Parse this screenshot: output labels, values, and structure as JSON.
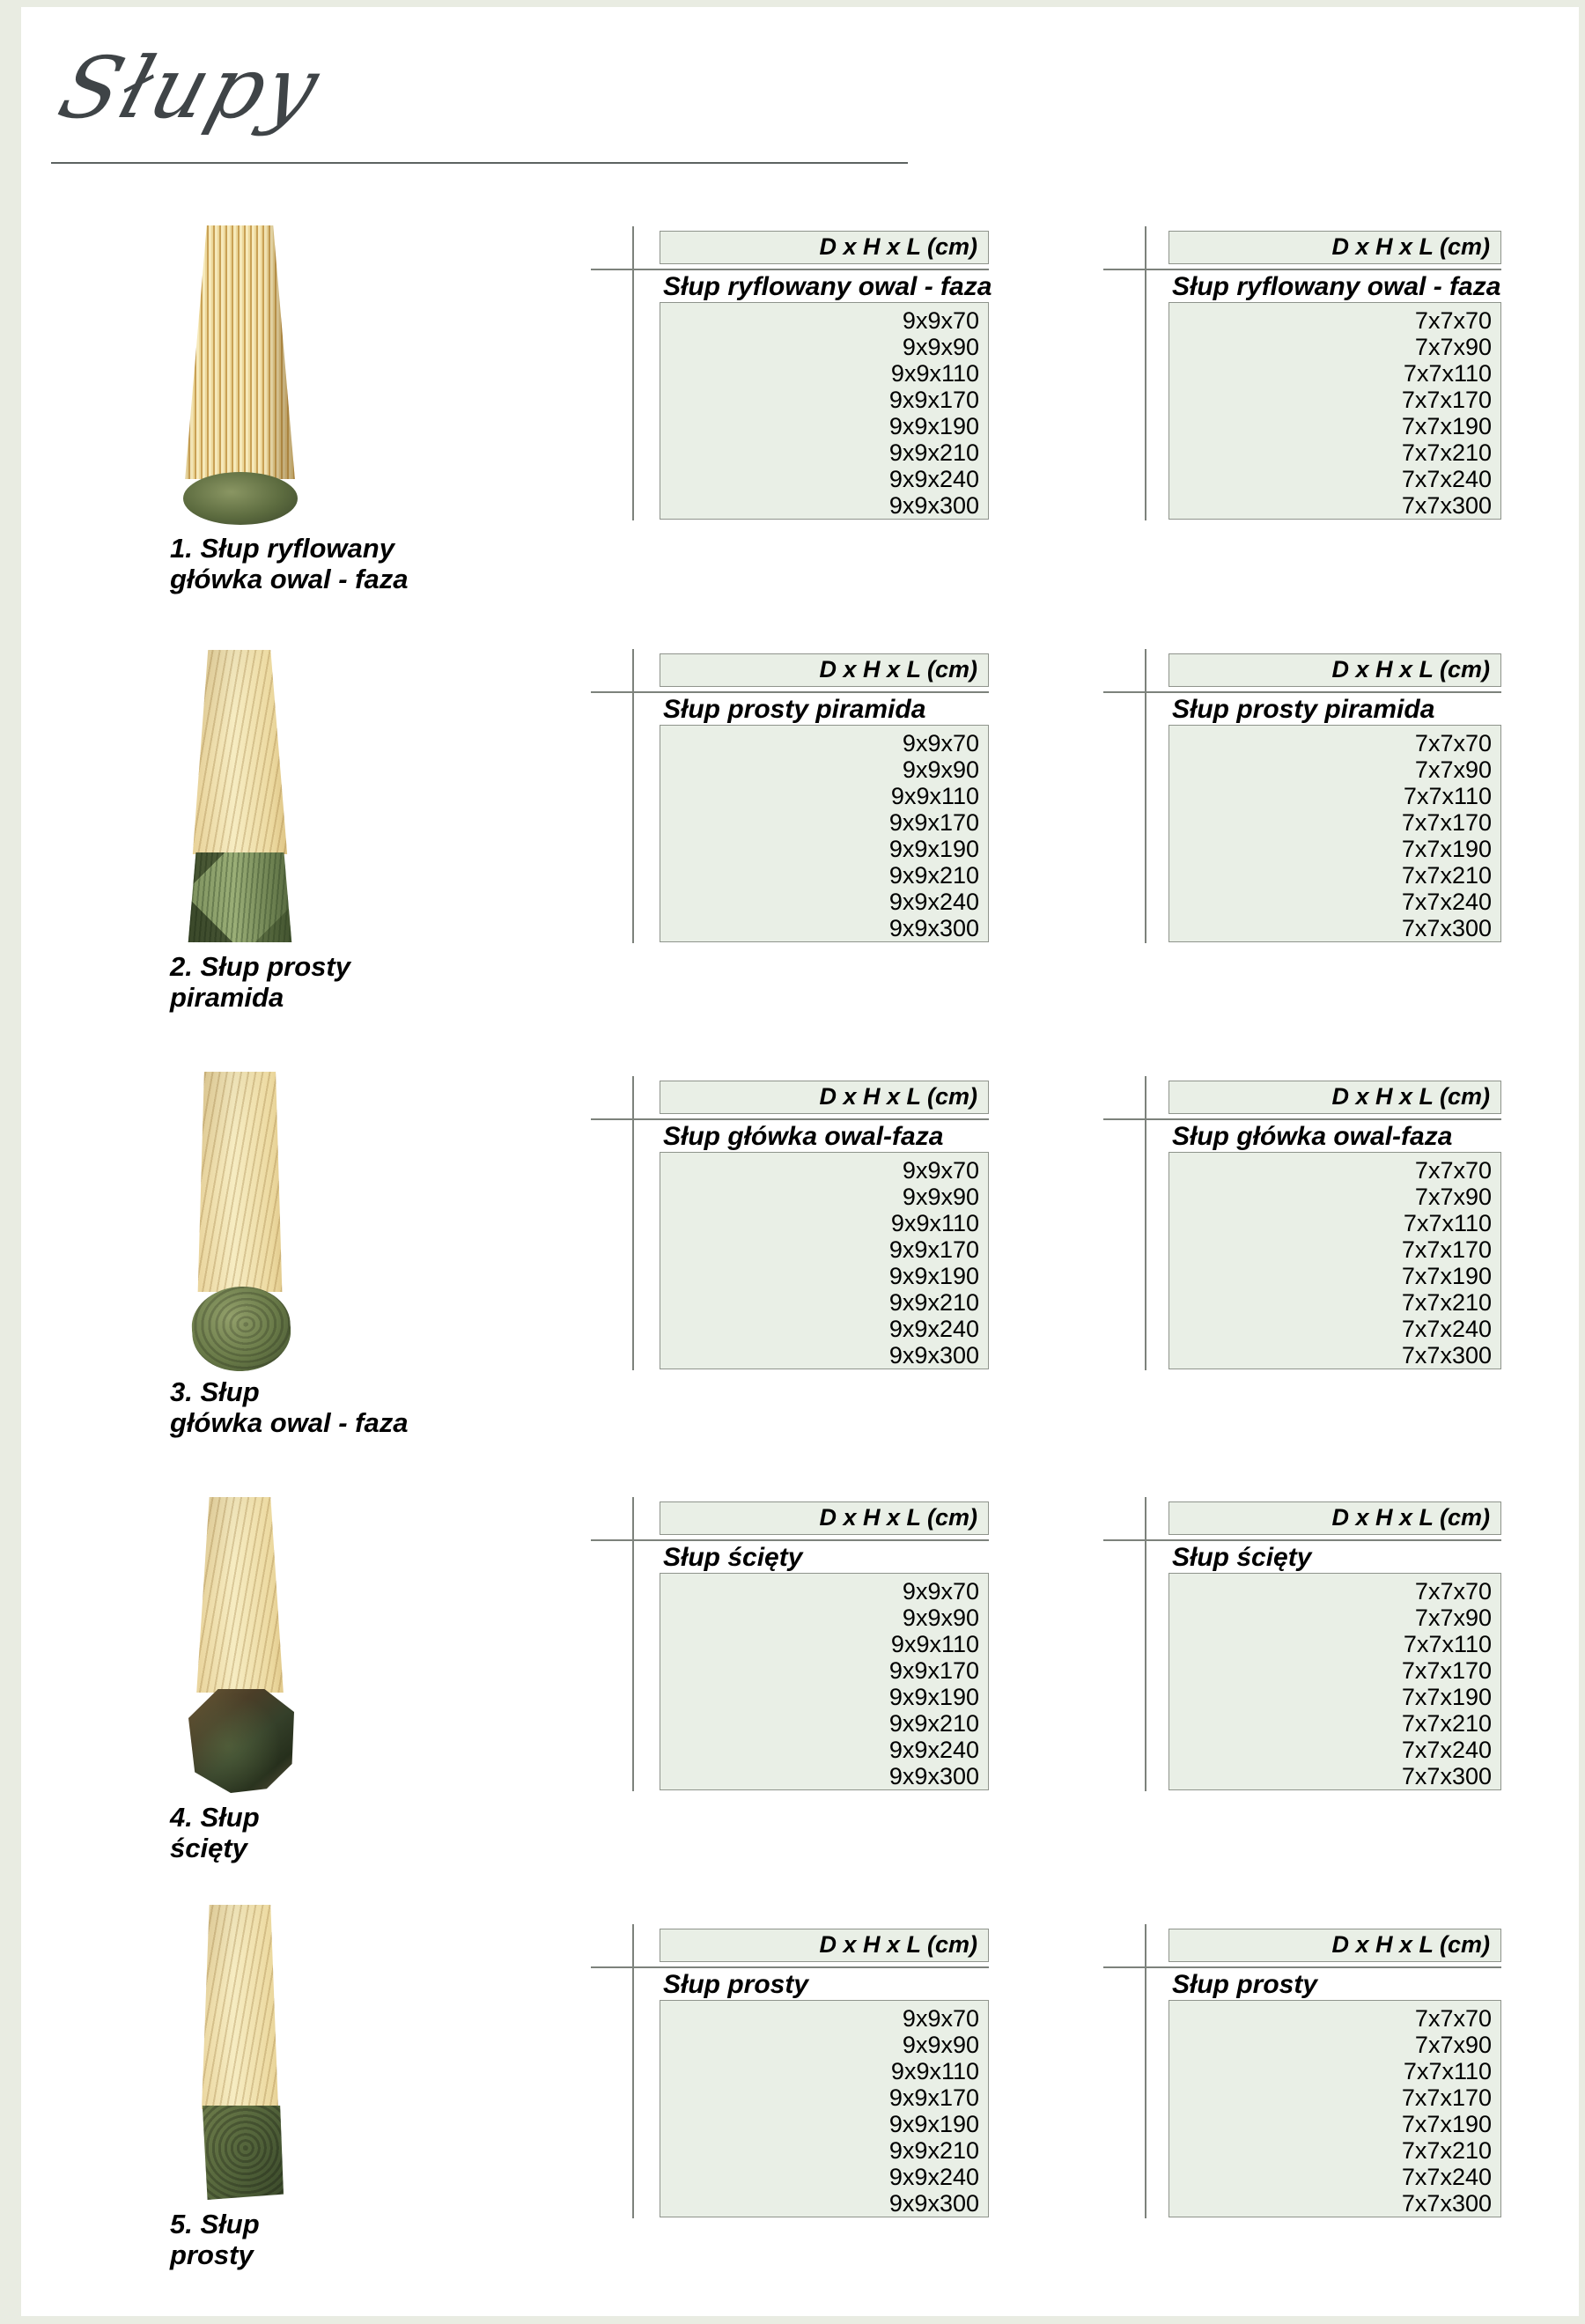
{
  "page": {
    "title": "Słupy",
    "colors": {
      "outer_background": "#e9ece2",
      "paper": "#ffffff",
      "table_fill": "#e9efe6",
      "table_border": "#8f948c",
      "frame_line": "#7d827c",
      "title_color": "#3f4447",
      "text": "#000000"
    }
  },
  "dims_header": "D x H x L (cm)",
  "rows": [
    {
      "label_line1": "1. Słup ryflowany",
      "label_line2": "główka owal - faza",
      "photo": "ribbed-post-oval-faza-head",
      "left_table": {
        "name": "Słup ryflowany owal - faza",
        "sizes": [
          "9x9x70",
          "9x9x90",
          "9x9x110",
          "9x9x170",
          "9x9x190",
          "9x9x210",
          "9x9x240",
          "9x9x300"
        ]
      },
      "right_table": {
        "name": "Słup ryflowany owal - faza",
        "sizes": [
          "7x7x70",
          "7x7x90",
          "7x7x110",
          "7x7x170",
          "7x7x190",
          "7x7x210",
          "7x7x240",
          "7x7x300"
        ]
      }
    },
    {
      "label_line1": "2. Słup prosty",
      "label_line2": "piramida",
      "photo": "straight-post-pyramid-head",
      "left_table": {
        "name": "Słup prosty piramida",
        "sizes": [
          "9x9x70",
          "9x9x90",
          "9x9x110",
          "9x9x170",
          "9x9x190",
          "9x9x210",
          "9x9x240",
          "9x9x300"
        ]
      },
      "right_table": {
        "name": "Słup prosty piramida",
        "sizes": [
          "7x7x70",
          "7x7x90",
          "7x7x110",
          "7x7x170",
          "7x7x190",
          "7x7x210",
          "7x7x240",
          "7x7x300"
        ]
      }
    },
    {
      "label_line1": "3. Słup",
      "label_line2": "główka owal - faza",
      "photo": "post-oval-faza-head",
      "left_table": {
        "name": "Słup główka owal-faza",
        "sizes": [
          "9x9x70",
          "9x9x90",
          "9x9x110",
          "9x9x170",
          "9x9x190",
          "9x9x210",
          "9x9x240",
          "9x9x300"
        ]
      },
      "right_table": {
        "name": "Słup główka owal-faza",
        "sizes": [
          "7x7x70",
          "7x7x90",
          "7x7x110",
          "7x7x170",
          "7x7x190",
          "7x7x210",
          "7x7x240",
          "7x7x300"
        ]
      }
    },
    {
      "label_line1": "4. Słup",
      "label_line2": "ścięty",
      "photo": "chamfered-post",
      "left_table": {
        "name": "Słup ścięty",
        "sizes": [
          "9x9x70",
          "9x9x90",
          "9x9x110",
          "9x9x170",
          "9x9x190",
          "9x9x210",
          "9x9x240",
          "9x9x300"
        ]
      },
      "right_table": {
        "name": "Słup ścięty",
        "sizes": [
          "7x7x70",
          "7x7x90",
          "7x7x110",
          "7x7x170",
          "7x7x190",
          "7x7x210",
          "7x7x240",
          "7x7x300"
        ]
      }
    },
    {
      "label_line1": "5. Słup",
      "label_line2": "prosty",
      "photo": "straight-post",
      "left_table": {
        "name": "Słup prosty",
        "sizes": [
          "9x9x70",
          "9x9x90",
          "9x9x110",
          "9x9x170",
          "9x9x190",
          "9x9x210",
          "9x9x240",
          "9x9x300"
        ]
      },
      "right_table": {
        "name": "Słup prosty",
        "sizes": [
          "7x7x70",
          "7x7x90",
          "7x7x110",
          "7x7x170",
          "7x7x190",
          "7x7x210",
          "7x7x240",
          "7x7x300"
        ]
      }
    }
  ]
}
